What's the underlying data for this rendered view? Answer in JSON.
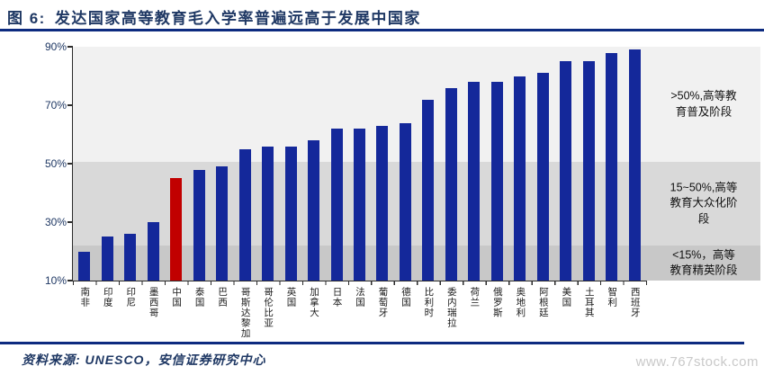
{
  "header": {
    "figure_label": "图 6:",
    "title": "发达国家高等教育毛入学率普遍远高于发展中国家"
  },
  "footer": {
    "source": "资料来源: UNESCO，安信证券研究中心",
    "watermark": "www.767stock.com"
  },
  "chart_data": {
    "type": "bar",
    "title": "发达国家高等教育毛入学率普遍远高于发展中国家",
    "xlabel": "",
    "ylabel": "",
    "categories": [
      "南非",
      "印度",
      "印尼",
      "墨西哥",
      "中国",
      "泰国",
      "巴西",
      "哥斯达黎加",
      "哥伦比亚",
      "英国",
      "加拿大",
      "日本",
      "法国",
      "葡萄牙",
      "德国",
      "比利时",
      "委内瑞拉",
      "荷兰",
      "俄罗斯",
      "奥地利",
      "阿根廷",
      "美国",
      "土耳其",
      "智利",
      "西班牙"
    ],
    "values": [
      20,
      25,
      26,
      30,
      45,
      48,
      49,
      55,
      56,
      56,
      58,
      62,
      62,
      63,
      64,
      72,
      76,
      78,
      78,
      80,
      81,
      85,
      85,
      88,
      89
    ],
    "unit": "%",
    "highlight_category": "中国",
    "highlight_color": "#c10000",
    "bar_color": "#14289a",
    "ylim": [
      10,
      90
    ],
    "yticks": [
      {
        "value": 90,
        "label": "90%"
      },
      {
        "value": 70,
        "label": "70%"
      },
      {
        "value": 50,
        "label": "50%"
      },
      {
        "value": 30,
        "label": "30%"
      },
      {
        "value": 10,
        "label": "10%"
      }
    ],
    "grid": false,
    "legend": "none",
    "bands": [
      {
        "range_label": ">50%,高等教\n育普及阶段",
        "from": 50.5,
        "to": 90,
        "color": "#f1f1f1"
      },
      {
        "range_label": "15~50%,高等\n教育大众化阶\n段",
        "from": 22,
        "to": 50.5,
        "color": "#d9d9d9"
      },
      {
        "range_label": "<15%，高等\n教育精英阶段",
        "from": 10,
        "to": 22,
        "color": "#c8c8c8"
      }
    ]
  }
}
